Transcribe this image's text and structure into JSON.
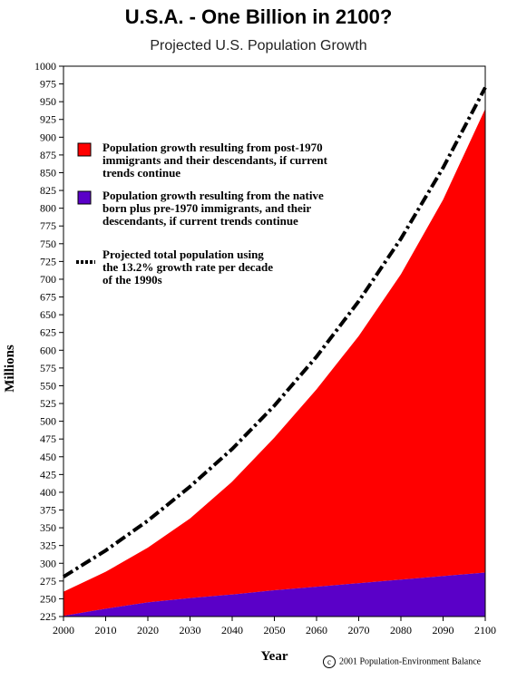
{
  "chart_data": {
    "type": "area",
    "title": "U.S.A. - One Billion in 2100?",
    "subtitle": "Projected U.S. Population Growth",
    "xlabel": "Year",
    "ylabel": "Millions",
    "xlim": [
      2000,
      2100
    ],
    "ylim": [
      225,
      1000
    ],
    "x_ticks": [
      2000,
      2010,
      2020,
      2030,
      2040,
      2050,
      2060,
      2070,
      2080,
      2090,
      2100
    ],
    "y_ticks": [
      225,
      250,
      275,
      300,
      325,
      350,
      375,
      400,
      425,
      450,
      475,
      500,
      525,
      550,
      575,
      600,
      625,
      650,
      675,
      700,
      725,
      750,
      775,
      800,
      825,
      850,
      875,
      900,
      925,
      950,
      975,
      1000
    ],
    "x": [
      2000,
      2010,
      2020,
      2030,
      2040,
      2050,
      2060,
      2070,
      2080,
      2090,
      2100
    ],
    "series": [
      {
        "name": "Population growth resulting from the native born plus pre-1970 immigrants, and their descendants, if current trends continue",
        "color": "#5a00c8",
        "values": [
          226,
          236,
          245,
          251,
          256,
          262,
          267,
          272,
          277,
          282,
          287
        ]
      },
      {
        "name": "Population growth resulting from post-1970 immigrants and their descendants, if current trends continue",
        "color": "#ff0000",
        "values": [
          260,
          288,
          322,
          363,
          415,
          477,
          545,
          620,
          707,
          812,
          940
        ]
      },
      {
        "name": "Projected total population using the 13.2% growth rate per decade of the 1990s",
        "color": "#000000",
        "style": "dash-dot",
        "values": [
          281,
          318,
          360,
          408,
          461,
          522,
          591,
          669,
          757,
          857,
          970
        ]
      }
    ],
    "legend": [
      {
        "swatch": "red-box",
        "color": "#ff0000",
        "lines": [
          "Population growth resulting from post-1970",
          "immigrants and their descendants, if current",
          "trends continue"
        ]
      },
      {
        "swatch": "purple-box",
        "color": "#5a00c8",
        "lines": [
          "Population growth resulting from the native",
          "born plus pre-1970 immigrants, and their",
          "descendants, if current trends continue"
        ]
      },
      {
        "swatch": "dashed-line",
        "color": "#000000",
        "lines": [
          "Projected total population using",
          "the 13.2% growth rate per decade",
          "of the 1990s"
        ]
      }
    ],
    "legend_placement": "top-left",
    "grid": false
  },
  "copyright": "2001 Population-Environment Balance",
  "copyright_symbol": "c"
}
